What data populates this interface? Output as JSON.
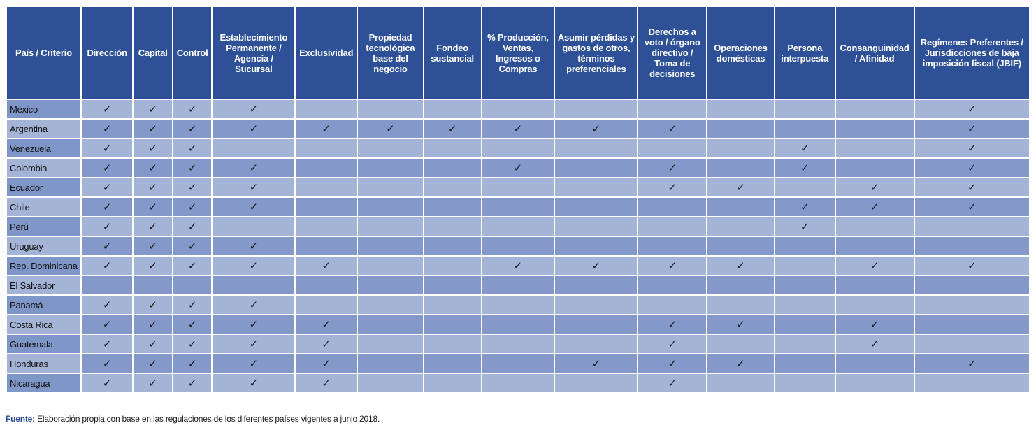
{
  "table": {
    "headers": [
      "País / Criterio",
      "Dirección",
      "Capital",
      "Control",
      "Establecimiento Permanente / Agencia / Sucursal",
      "Exclusividad",
      "Propiedad tecnológica base del negocio",
      "Fondeo sustancial",
      "% Producción, Ventas, Ingresos o Compras",
      "Asumir pérdidas y gastos de otros, términos preferenciales",
      "Derechos a voto / órgano directivo / Toma de decisiones",
      "Operaciones domésticas",
      "Persona interpuesta",
      "Consanguinidad / Afinidad",
      "Regímenes Preferentes / Jurisdicciones de baja imposición fiscal (JBIF)"
    ],
    "check_symbol": "✓",
    "rows": [
      {
        "country": "México",
        "checks": [
          1,
          1,
          1,
          1,
          0,
          0,
          0,
          0,
          0,
          0,
          0,
          0,
          0,
          1
        ]
      },
      {
        "country": "Argentina",
        "checks": [
          1,
          1,
          1,
          1,
          1,
          1,
          1,
          1,
          1,
          1,
          0,
          0,
          0,
          1
        ]
      },
      {
        "country": "Venezuela",
        "checks": [
          1,
          1,
          1,
          0,
          0,
          0,
          0,
          0,
          0,
          0,
          0,
          1,
          0,
          1
        ]
      },
      {
        "country": "Colombia",
        "checks": [
          1,
          1,
          1,
          1,
          0,
          0,
          0,
          1,
          0,
          1,
          0,
          1,
          0,
          1
        ]
      },
      {
        "country": "Ecuador",
        "checks": [
          1,
          1,
          1,
          1,
          0,
          0,
          0,
          0,
          0,
          1,
          1,
          0,
          1,
          1
        ]
      },
      {
        "country": "Chile",
        "checks": [
          1,
          1,
          1,
          1,
          0,
          0,
          0,
          0,
          0,
          0,
          0,
          1,
          1,
          1
        ]
      },
      {
        "country": "Perú",
        "checks": [
          1,
          1,
          1,
          0,
          0,
          0,
          0,
          0,
          0,
          0,
          0,
          1,
          0,
          0
        ]
      },
      {
        "country": "Uruguay",
        "checks": [
          1,
          1,
          1,
          1,
          0,
          0,
          0,
          0,
          0,
          0,
          0,
          0,
          0,
          0
        ]
      },
      {
        "country": "Rep. Dominicana",
        "checks": [
          1,
          1,
          1,
          1,
          1,
          0,
          0,
          1,
          1,
          1,
          1,
          0,
          1,
          1
        ]
      },
      {
        "country": "El Salvador",
        "checks": [
          0,
          0,
          0,
          0,
          0,
          0,
          0,
          0,
          0,
          0,
          0,
          0,
          0,
          0
        ]
      },
      {
        "country": "Panamá",
        "checks": [
          1,
          1,
          1,
          1,
          0,
          0,
          0,
          0,
          0,
          0,
          0,
          0,
          0,
          0
        ]
      },
      {
        "country": "Costa Rica",
        "checks": [
          1,
          1,
          1,
          1,
          1,
          0,
          0,
          0,
          0,
          1,
          1,
          0,
          1,
          0
        ]
      },
      {
        "country": "Guatemala",
        "checks": [
          1,
          1,
          1,
          1,
          1,
          0,
          0,
          0,
          0,
          1,
          0,
          0,
          1,
          0
        ]
      },
      {
        "country": "Honduras",
        "checks": [
          1,
          1,
          1,
          1,
          1,
          0,
          0,
          0,
          1,
          1,
          1,
          0,
          0,
          1
        ]
      },
      {
        "country": "Nicaragua",
        "checks": [
          1,
          1,
          1,
          1,
          1,
          0,
          0,
          0,
          0,
          1,
          0,
          0,
          0,
          0
        ]
      }
    ]
  },
  "source": {
    "label": "Fuente:",
    "text": " Elaboración propia con base en las regulaciones de los diferentes países vigentes a junio 2018."
  },
  "colors": {
    "header": "#2d5096",
    "row_light": "#a4b4d6",
    "row_dark": "#8499c9",
    "country_dark": "#7f96c8"
  }
}
